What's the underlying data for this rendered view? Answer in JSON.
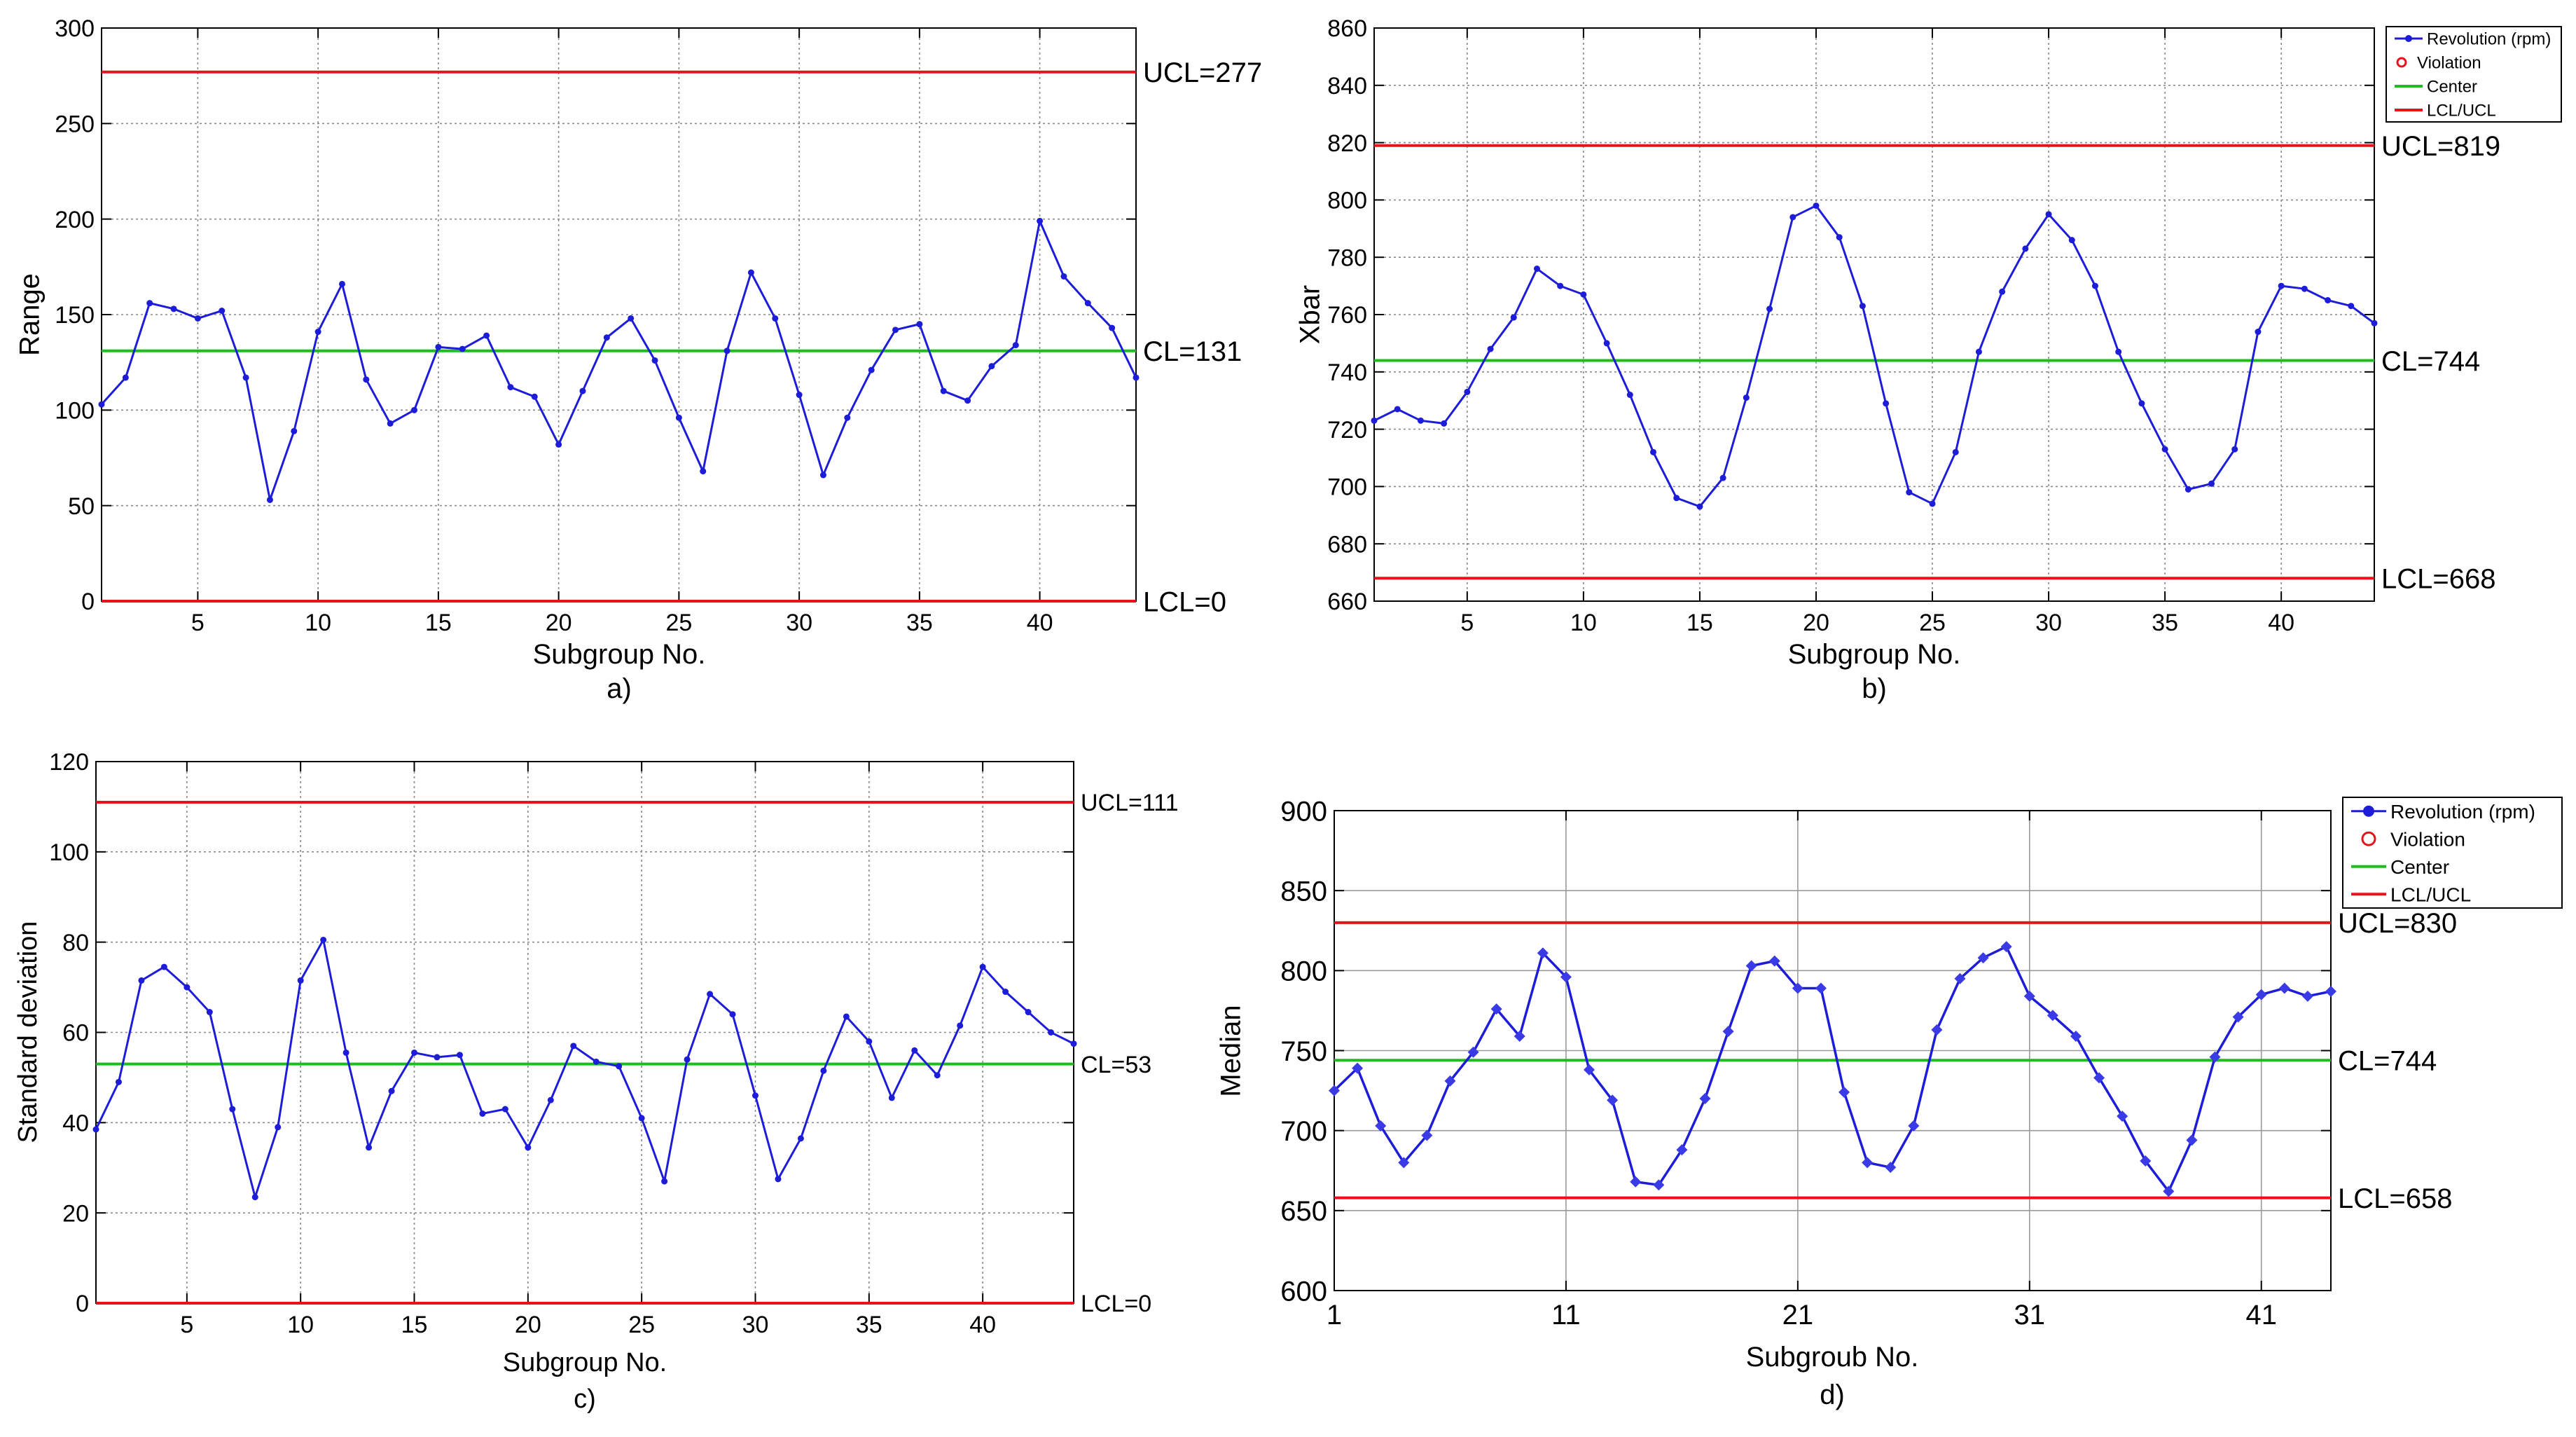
{
  "chart_data": [
    {
      "id": "a",
      "type": "line",
      "caption": "a)",
      "xlabel": "Subgroup No.",
      "ylabel": "Range",
      "xlim": [
        1,
        44
      ],
      "ylim": [
        0,
        300
      ],
      "xticks": [
        5,
        10,
        15,
        20,
        25,
        30,
        35,
        40
      ],
      "yticks": [
        0,
        50,
        100,
        150,
        200,
        250,
        300
      ],
      "grid": "dotted",
      "series": [
        {
          "name": "Revolution (rpm)",
          "x": [
            1,
            2,
            3,
            4,
            5,
            6,
            7,
            8,
            9,
            10,
            11,
            12,
            13,
            14,
            15,
            16,
            17,
            18,
            19,
            20,
            21,
            22,
            23,
            24,
            25,
            26,
            27,
            28,
            29,
            30,
            31,
            32,
            33,
            34,
            35,
            36,
            37,
            38,
            39,
            40,
            41,
            42,
            43,
            44
          ],
          "values": [
            103,
            117,
            156,
            153,
            148,
            152,
            117,
            53,
            89,
            141,
            166,
            116,
            93,
            100,
            133,
            132,
            139,
            112,
            107,
            82,
            110,
            138,
            148,
            126,
            96,
            68,
            131,
            172,
            148,
            108,
            66,
            96,
            121,
            142,
            145,
            110,
            105,
            123,
            134,
            199,
            170,
            156,
            143,
            117
          ]
        }
      ],
      "ucl": 277,
      "cl": 131,
      "lcl": 0,
      "ucl_label": "UCL=277",
      "cl_label": "CL=131",
      "lcl_label": "LCL=0"
    },
    {
      "id": "b",
      "type": "line",
      "caption": "b)",
      "xlabel": "Subgroup No.",
      "ylabel": "Xbar",
      "xlim": [
        1,
        44
      ],
      "ylim": [
        660,
        860
      ],
      "xticks": [
        5,
        10,
        15,
        20,
        25,
        30,
        35,
        40
      ],
      "yticks": [
        660,
        680,
        700,
        720,
        740,
        760,
        780,
        800,
        820,
        840,
        860
      ],
      "grid": "dotted",
      "series": [
        {
          "name": "Revolution (rpm)",
          "x": [
            1,
            2,
            3,
            4,
            5,
            6,
            7,
            8,
            9,
            10,
            11,
            12,
            13,
            14,
            15,
            16,
            17,
            18,
            19,
            20,
            21,
            22,
            23,
            24,
            25,
            26,
            27,
            28,
            29,
            30,
            31,
            32,
            33,
            34,
            35,
            36,
            37,
            38,
            39,
            40,
            41,
            42,
            43,
            44
          ],
          "values": [
            723,
            727,
            723,
            722,
            733,
            748,
            759,
            776,
            770,
            767,
            750,
            732,
            712,
            696,
            693,
            703,
            731,
            762,
            794,
            798,
            787,
            763,
            729,
            698,
            694,
            712,
            747,
            768,
            783,
            795,
            786,
            770,
            747,
            729,
            713,
            699,
            701,
            713,
            754,
            770,
            769,
            765,
            763,
            757
          ]
        }
      ],
      "ucl": 819,
      "cl": 744,
      "lcl": 668,
      "ucl_label": "UCL=819",
      "cl_label": "CL=744",
      "lcl_label": "LCL=668",
      "legend": {
        "position": "top-right",
        "entries": [
          "Revolution (rpm)",
          "Violation",
          "Center",
          "LCL/UCL"
        ]
      }
    },
    {
      "id": "c",
      "type": "line",
      "caption": "c)",
      "xlabel": "Subgroup No.",
      "ylabel": "Standard deviation",
      "xlim": [
        1,
        44
      ],
      "ylim": [
        0,
        120
      ],
      "xticks": [
        5,
        10,
        15,
        20,
        25,
        30,
        35,
        40
      ],
      "yticks": [
        0,
        20,
        40,
        60,
        80,
        100,
        120
      ],
      "grid": "dotted",
      "series": [
        {
          "name": "Revolution (rpm)",
          "x": [
            1,
            2,
            3,
            4,
            5,
            6,
            7,
            8,
            9,
            10,
            11,
            12,
            13,
            14,
            15,
            16,
            17,
            18,
            19,
            20,
            21,
            22,
            23,
            24,
            25,
            26,
            27,
            28,
            29,
            30,
            31,
            32,
            33,
            34,
            35,
            36,
            37,
            38,
            39,
            40,
            41,
            42,
            43,
            44
          ],
          "values": [
            38.5,
            49,
            71.5,
            74.5,
            70,
            64.5,
            43,
            23.5,
            39,
            71.5,
            80.5,
            55.5,
            34.5,
            47,
            55.5,
            54.5,
            55,
            42,
            43,
            34.5,
            45,
            57,
            53.5,
            52.5,
            41,
            27,
            54,
            68.5,
            64,
            46,
            27.5,
            36.5,
            51.5,
            63.5,
            58,
            45.5,
            56,
            50.5,
            61.5,
            74.5,
            69,
            64.5,
            60,
            57.5
          ]
        }
      ],
      "ucl": 111,
      "cl": 53,
      "lcl": 0,
      "ucl_label": "UCL=111",
      "cl_label": "CL=53",
      "lcl_label": "LCL=0"
    },
    {
      "id": "d",
      "type": "line",
      "caption": "d)",
      "xlabel": "Subgroub No.",
      "ylabel": "Median",
      "xlim": [
        1,
        44
      ],
      "ylim": [
        600,
        900
      ],
      "xticks": [
        1,
        11,
        21,
        31,
        41
      ],
      "yticks": [
        600,
        650,
        700,
        750,
        800,
        850,
        900
      ],
      "grid": "solid",
      "series": [
        {
          "name": "Revolution (rpm)",
          "x": [
            1,
            2,
            3,
            4,
            5,
            6,
            7,
            8,
            9,
            10,
            11,
            12,
            13,
            14,
            15,
            16,
            17,
            18,
            19,
            20,
            21,
            22,
            23,
            24,
            25,
            26,
            27,
            28,
            29,
            30,
            31,
            32,
            33,
            34,
            35,
            36,
            37,
            38,
            39,
            40,
            41,
            42,
            43,
            44
          ],
          "values": [
            725,
            739,
            703,
            680,
            697,
            731,
            749,
            776,
            759,
            811,
            796,
            738,
            719,
            668,
            666,
            688,
            720,
            762,
            803,
            806,
            789,
            789,
            724,
            680,
            677,
            703,
            763,
            795,
            808,
            815,
            784,
            772,
            759,
            733,
            709,
            681,
            662,
            694,
            746,
            771,
            785,
            789,
            784,
            787
          ]
        }
      ],
      "ucl": 830,
      "cl": 744,
      "lcl": 658,
      "ucl_label": "UCL=830",
      "cl_label": "CL=744",
      "lcl_label": "LCL=658",
      "legend": {
        "position": "top-right",
        "entries": [
          "Revolution (rpm)",
          "Violation",
          "Center",
          "LCL/UCL"
        ]
      }
    }
  ]
}
